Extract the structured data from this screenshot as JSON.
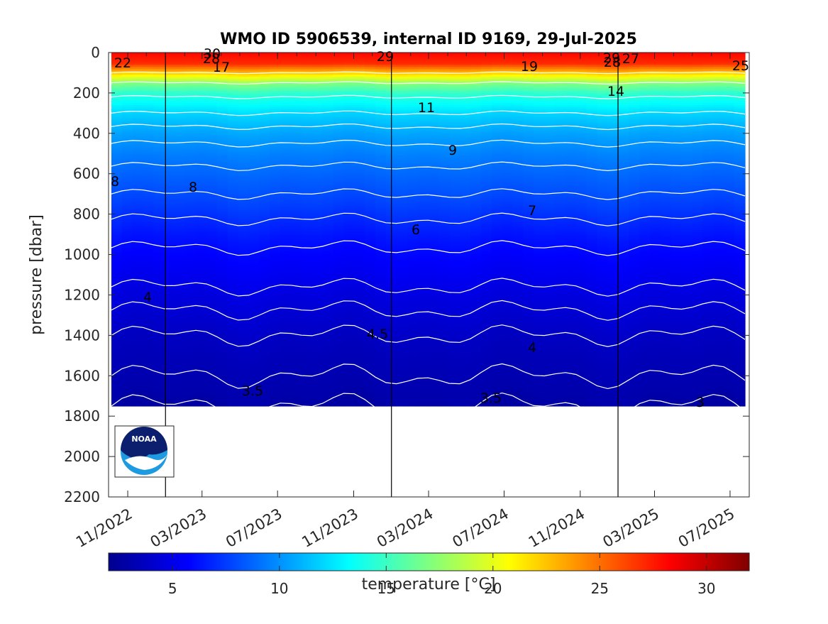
{
  "chart_data": {
    "type": "heatmap",
    "title": "WMO ID 5906539, internal ID 9169, 29-Jul-2025",
    "ylabel": "pressure [dbar]",
    "xlabel": "",
    "x_range": [
      "2022-10-01",
      "2025-08-01"
    ],
    "ylim": [
      0,
      2200
    ],
    "y_reversed": true,
    "y_ticks": [
      "0",
      "200",
      "400",
      "600",
      "800",
      "1000",
      "1200",
      "1400",
      "1600",
      "1800",
      "2000",
      "2200"
    ],
    "x_ticks": [
      "11/2022",
      "03/2023",
      "07/2023",
      "11/2023",
      "03/2024",
      "07/2024",
      "11/2024",
      "03/2025",
      "07/2025"
    ],
    "year_boundaries": [
      "2023-01-01",
      "2024-01-01",
      "2025-01-01"
    ],
    "colormap": "jet",
    "colorbar": {
      "label": "temperature [°C]",
      "range": [
        2,
        32
      ],
      "ticks": [
        "5",
        "10",
        "15",
        "20",
        "25",
        "30"
      ]
    },
    "contour_labels": [
      "22",
      "30",
      "28",
      "17",
      "29",
      "19",
      "28",
      "29",
      "27",
      "25",
      "14",
      "11",
      "9",
      "8",
      "8",
      "7",
      "6",
      "4",
      "4.5",
      "4",
      "3.5",
      "3.5",
      "3"
    ],
    "sample_profile": {
      "pressure": [
        0,
        50,
        100,
        150,
        200,
        300,
        400,
        500,
        600,
        700,
        800,
        900,
        1000,
        1100,
        1200,
        1300,
        1400,
        1500,
        1600,
        1700,
        1750
      ],
      "temperature": [
        28,
        27,
        22,
        17,
        14.5,
        12,
        10.5,
        9.5,
        8.7,
        8,
        7.2,
        6.4,
        5.8,
        5.3,
        4.8,
        4.4,
        4.0,
        3.7,
        3.5,
        3.3,
        3.0
      ]
    },
    "grid": false,
    "legend": "none"
  },
  "logo_text": "NOAA"
}
